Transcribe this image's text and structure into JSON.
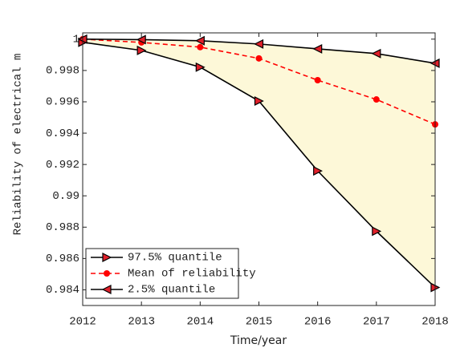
{
  "chart_data": {
    "type": "line",
    "xlabel": "Time/year",
    "ylabel": "Reliability of electrical m",
    "x": [
      2012,
      2013,
      2014,
      2015,
      2016,
      2017,
      2018
    ],
    "series": [
      {
        "name": "97.5% quantile",
        "color": "#000000",
        "marker": "triangle-right",
        "marker_color": "#e0202a",
        "linestyle": "solid",
        "values": [
          0.9998,
          0.99928,
          0.99821,
          0.99605,
          0.99159,
          0.98774,
          0.98415
        ]
      },
      {
        "name": "Mean of reliability",
        "color": "#ff0000",
        "marker": "circle",
        "marker_color": "#ff0000",
        "linestyle": "dashed",
        "values": [
          1.0,
          0.99979,
          0.99949,
          0.99877,
          0.99738,
          0.99615,
          0.99456
        ]
      },
      {
        "name": "2.5% quantile",
        "color": "#000000",
        "marker": "triangle-left",
        "marker_color": "#e0202a",
        "linestyle": "solid",
        "values": [
          1.0,
          0.99997,
          0.9999,
          0.99969,
          0.99938,
          0.99908,
          0.99846
        ]
      }
    ],
    "fill_between": {
      "series": [
        0,
        2
      ],
      "color": "#fdf8d8"
    },
    "xlim": [
      2012,
      2018
    ],
    "xticks": [
      2012,
      2013,
      2014,
      2015,
      2016,
      2017,
      2018
    ],
    "ylim": [
      0.983,
      1.0004
    ],
    "yticks": [
      0.984,
      0.986,
      0.988,
      0.99,
      0.992,
      0.994,
      0.996,
      0.998,
      1
    ],
    "grid": false,
    "legend_position": "lower-left"
  }
}
